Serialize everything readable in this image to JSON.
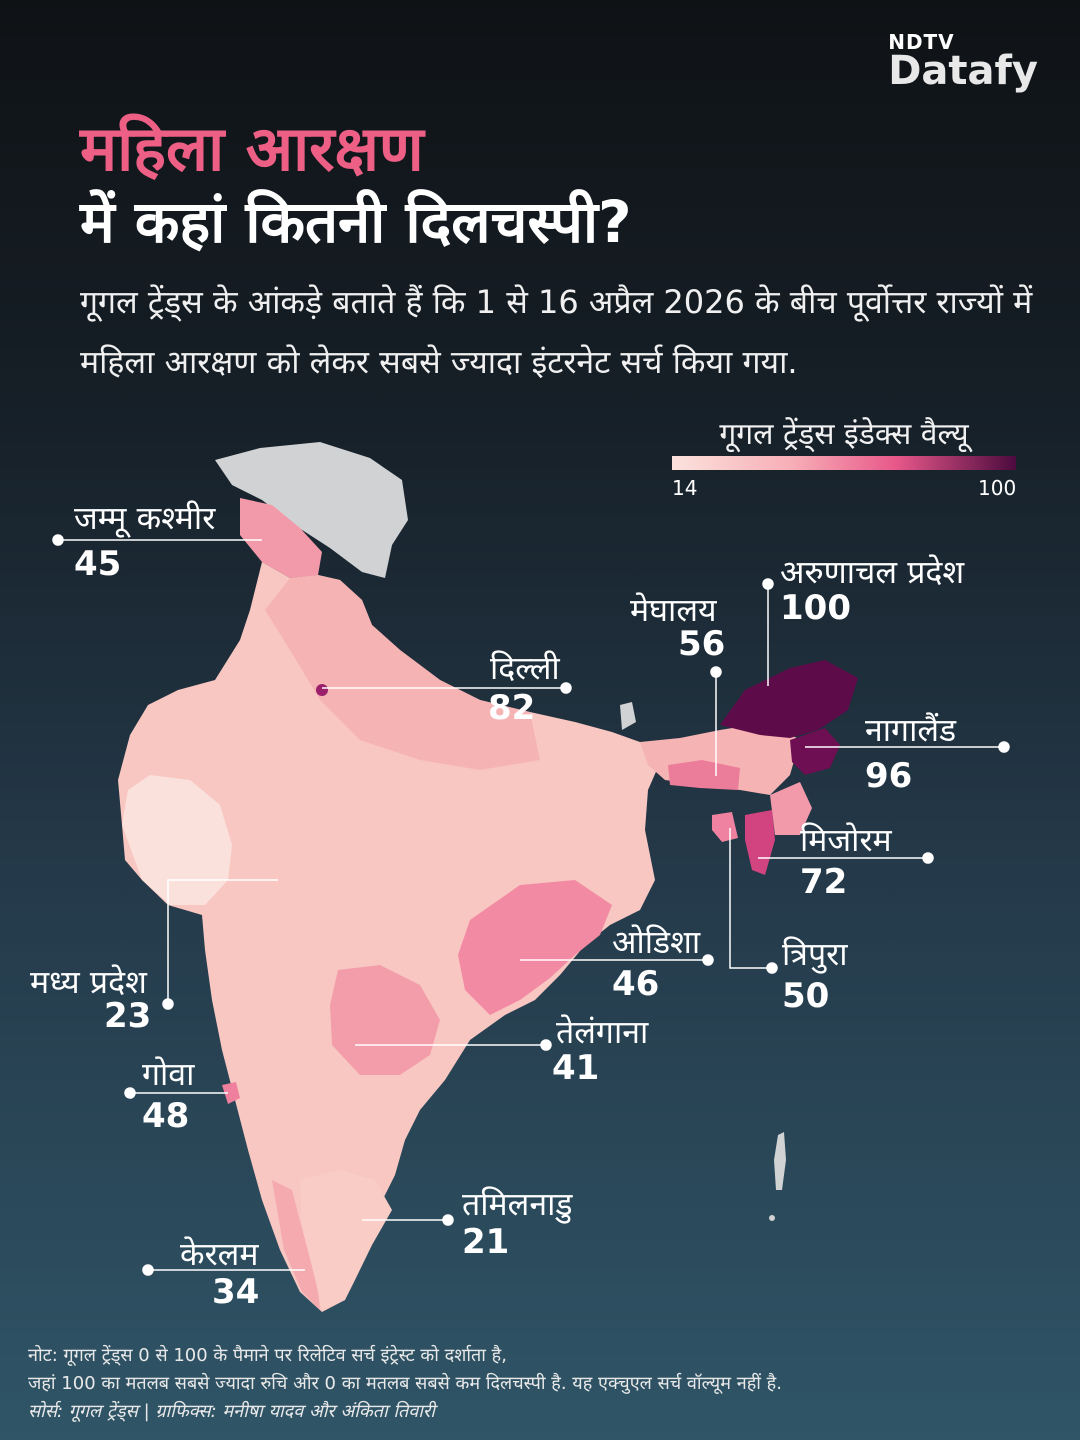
{
  "brand": {
    "line1": "NDTV",
    "line2": "Datafy"
  },
  "title": {
    "line1": "महिला आरक्षण",
    "line2": "में कहां कितनी दिलचस्पी?"
  },
  "subtitle": "गूगल ट्रेंड्स के आंकड़े बताते हैं कि 1 से 16 अप्रैल 2026 के बीच पूर्वोत्तर राज्यों में महिला आरक्षण को लेकर सबसे ज्यादा इंटरनेट सर्च किया गया.",
  "legend": {
    "title": "गूगल ट्रेंड्स इंडेक्स वैल्यू",
    "min": "14",
    "max": "100",
    "colors": [
      "#fbe2dc",
      "#f7aeb6",
      "#e8588a",
      "#4c0a3e"
    ]
  },
  "states": [
    {
      "name": "जम्मू कश्मीर",
      "value": "45",
      "color": "#f29aaa"
    },
    {
      "name": "अरुणाचल प्रदेश",
      "value": "100",
      "color": "#5e0b4a"
    },
    {
      "name": "मेघालय",
      "value": "56",
      "color": "#ec7d9a"
    },
    {
      "name": "दिल्ली",
      "value": "82",
      "color": "#9b1f6a"
    },
    {
      "name": "नागालैंड",
      "value": "96",
      "color": "#6d0f52"
    },
    {
      "name": "मिजोरम",
      "value": "72",
      "color": "#d24480"
    },
    {
      "name": "ओडिशा",
      "value": "46",
      "color": "#f28aa3"
    },
    {
      "name": "त्रिपुरा",
      "value": "50",
      "color": "#ef82a0"
    },
    {
      "name": "मध्य प्रदेश",
      "value": "23",
      "color": "#f8c7c2"
    },
    {
      "name": "तेलंगाना",
      "value": "41",
      "color": "#f39daa"
    },
    {
      "name": "गोवा",
      "value": "48",
      "color": "#ee7f9d"
    },
    {
      "name": "तमिलनाडु",
      "value": "21",
      "color": "#f9ccc6"
    },
    {
      "name": "केरलम",
      "value": "34",
      "color": "#f5aab0"
    }
  ],
  "notes": {
    "line1": "नोट: गूगल ट्रेंड्स 0 से 100 के पैमाने पर रिलेटिव सर्च इंट्रेस्ट को दर्शाता है,",
    "line2": "जहां 100 का मतलब सबसे ज्यादा रुचि और 0 का मतलब सबसे कम दिलचस्पी है. यह एक्चुएल सर्च वॉल्यूम नहीं है.",
    "line3": "सोर्स: गूगल ट्रेंड्स | ग्राफिक्स: मनीषा यादव और अंकिता तिवारी"
  }
}
